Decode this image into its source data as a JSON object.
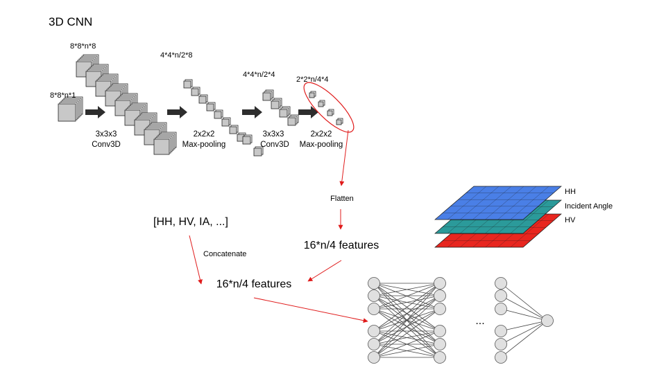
{
  "title": "3D CNN",
  "cnn": {
    "input_label": "8*8*n*1",
    "conv1_out_label": "8*8*n*8",
    "conv1_op": [
      "3x3x3",
      "Conv3D"
    ],
    "pool1_out_label": "4*4*n/2*8",
    "pool1_op": [
      "2x2x2",
      "Max-pooling"
    ],
    "conv2_out_label": "4*4*n/2*4",
    "conv2_op": [
      "3x3x3",
      "Conv3D"
    ],
    "pool2_out_label": "2*2*n/4*4",
    "pool2_op": [
      "2x2x2",
      "Max-pooling"
    ]
  },
  "flatten_label": "Flatten",
  "features_top": "16*n/4 features",
  "aux_inputs": "[HH, HV, IA, ...]",
  "concatenate_label": "Concatenate",
  "features_merged": "16*n/4 features",
  "layers": {
    "labels": [
      "HH",
      "Incident Angle",
      "HV"
    ],
    "colors": [
      "#4a7fe6",
      "#2b9a9a",
      "#e8261f"
    ]
  },
  "nn_ellipsis": "...",
  "colors": {
    "arrow": "#e01b1b",
    "block_arrow": "#2d2d2d",
    "node": "#e0e0e0"
  }
}
